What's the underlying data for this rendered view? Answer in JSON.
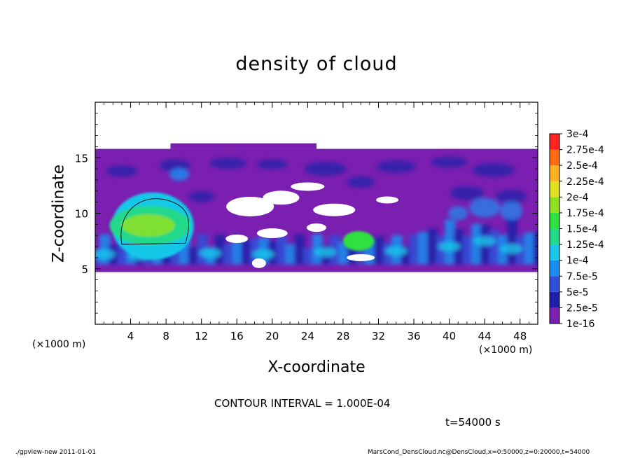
{
  "chart_data": {
    "type": "heatmap",
    "title": "density of cloud",
    "xlabel": "X-coordinate",
    "ylabel": "Z-coordinate",
    "x_unit": "(×1000 m)",
    "y_unit": "(×1000 m)",
    "xlim": [
      0,
      50
    ],
    "ylim": [
      0,
      20
    ],
    "x_ticks": [
      4,
      8,
      12,
      16,
      20,
      24,
      28,
      32,
      36,
      40,
      44,
      48
    ],
    "y_ticks": [
      5,
      10,
      15
    ],
    "colorbar": {
      "levels": [
        "1e-16",
        "2.5e-5",
        "5e-5",
        "7.5e-5",
        "1e-4",
        "1.25e-4",
        "1.5e-4",
        "1.75e-4",
        "2e-4",
        "2.25e-4",
        "2.5e-4",
        "2.75e-4",
        "3e-4"
      ],
      "colors": [
        "#7a1fb0",
        "#1f1fa8",
        "#2f4fd8",
        "#1a8ef0",
        "#19c8e8",
        "#22d88a",
        "#2ee040",
        "#8fe020",
        "#e0e020",
        "#ffb020",
        "#ff6a10",
        "#ff2020",
        "#ff8080"
      ]
    },
    "regions": [
      {
        "name": "cloud layer",
        "x": [
          0,
          50
        ],
        "z": [
          4.7,
          15.8
        ],
        "level": "1e-16"
      },
      {
        "name": "dense core",
        "x": [
          2.5,
          10.5
        ],
        "z": [
          6.5,
          11.8
        ],
        "level": "1.25e-4"
      },
      {
        "name": "secondary core",
        "x": [
          28,
          31.5
        ],
        "z": [
          6.8,
          8.2
        ],
        "level": "1.25e-4"
      }
    ]
  },
  "contour_note": "CONTOUR INTERVAL = 1.000E-04",
  "time_label": "t=54000 s",
  "footer": {
    "left": "./gpview-new   2011-01-01",
    "right": "MarsCond_DensCloud.nc@DensCloud,x=0:50000,z=0:20000,t=54000"
  }
}
